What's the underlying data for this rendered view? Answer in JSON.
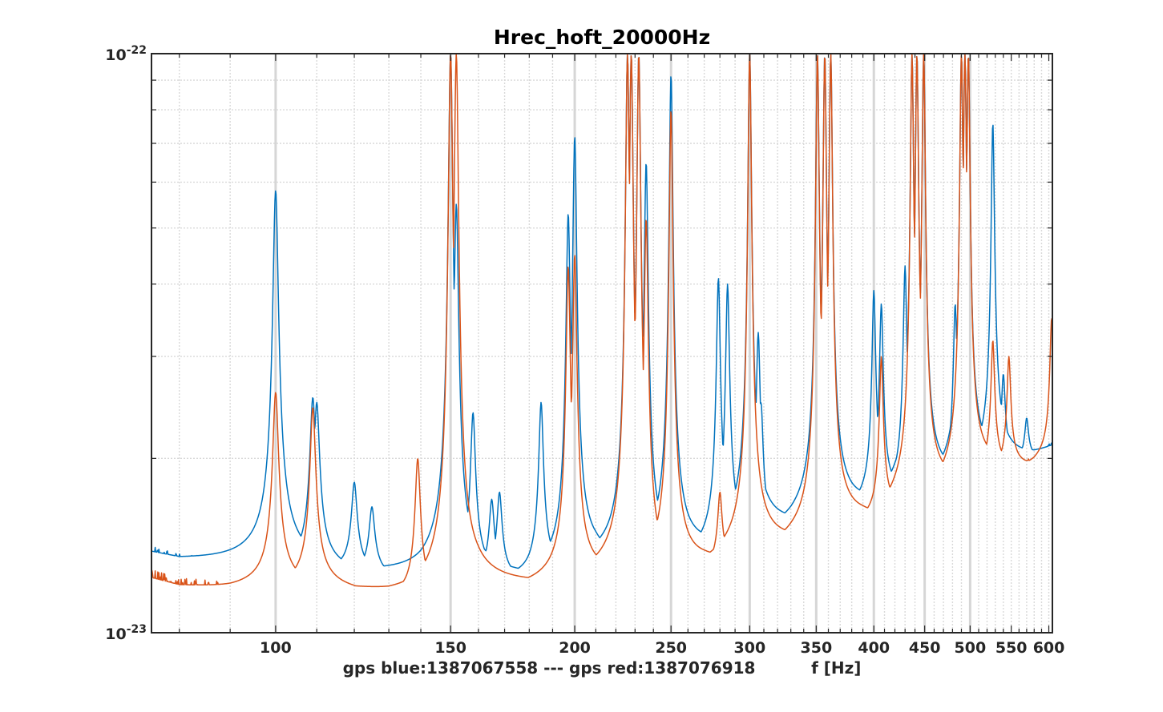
{
  "chart_data": {
    "type": "line",
    "title": "Hrec_hoft_20000Hz",
    "xlabel": "gps blue:1387067558 --- gps red:1387076918          f [Hz]",
    "ylabel": "",
    "x_scale": "log",
    "y_scale": "log",
    "xlim": [
      75,
      605
    ],
    "ylim": [
      1e-23,
      1e-22
    ],
    "x_ticks": [
      100,
      150,
      200,
      250,
      300,
      350,
      400,
      450,
      500,
      550,
      600
    ],
    "y_tick_labels": [
      {
        "value": 1e-23,
        "base": "10",
        "exp": "-23"
      },
      {
        "value": 1e-22,
        "base": "10",
        "exp": "-22"
      }
    ],
    "grid": true,
    "legend": "none",
    "colors": {
      "blue": "#0072bd",
      "red": "#d95319",
      "axes": "#262626",
      "grid": "#d9d9d9",
      "marker": "#d6d6d6"
    },
    "reference_lines_hz": [
      100,
      150,
      200,
      250,
      300,
      350,
      400,
      450,
      500
    ],
    "series": [
      {
        "color": "#0072bd",
        "baseline": [
          [
            75,
            1.35e-23
          ],
          [
            80,
            1.31e-23
          ],
          [
            90,
            1.29e-23
          ],
          [
            100,
            1.27e-23
          ],
          [
            110,
            1.27e-23
          ],
          [
            120,
            1.25e-23
          ],
          [
            130,
            1.23e-23
          ],
          [
            140,
            1.21e-23
          ],
          [
            150,
            1.22e-23
          ],
          [
            160,
            1.24e-23
          ],
          [
            170,
            1.22e-23
          ],
          [
            180,
            1.22e-23
          ],
          [
            190,
            1.24e-23
          ],
          [
            200,
            1.25e-23
          ],
          [
            210,
            1.29e-23
          ],
          [
            220,
            1.29e-23
          ],
          [
            230,
            1.31e-23
          ],
          [
            240,
            1.32e-23
          ],
          [
            250,
            1.31e-23
          ],
          [
            260,
            1.32e-23
          ],
          [
            270,
            1.35e-23
          ],
          [
            280,
            1.38e-23
          ],
          [
            290,
            1.41e-23
          ],
          [
            300,
            1.43e-23
          ],
          [
            310,
            1.45e-23
          ],
          [
            320,
            1.47e-23
          ],
          [
            330,
            1.49e-23
          ],
          [
            340,
            1.52e-23
          ],
          [
            350,
            1.54e-23
          ],
          [
            360,
            1.56e-23
          ],
          [
            370,
            1.58e-23
          ],
          [
            380,
            1.59e-23
          ],
          [
            390,
            1.61e-23
          ],
          [
            400,
            1.62e-23
          ],
          [
            420,
            1.69e-23
          ],
          [
            440,
            1.72e-23
          ],
          [
            460,
            1.76e-23
          ],
          [
            480,
            1.8e-23
          ],
          [
            500,
            1.87e-23
          ],
          [
            520,
            1.9e-23
          ],
          [
            540,
            1.93e-23
          ],
          [
            560,
            1.95e-23
          ],
          [
            580,
            1.98e-23
          ],
          [
            605,
            2.05e-23
          ]
        ],
        "peaks": [
          [
            100,
            5.8e-23
          ],
          [
            109,
            2.55e-23
          ],
          [
            110,
            2.5e-23
          ],
          [
            120,
            1.82e-23
          ],
          [
            125,
            1.65e-23
          ],
          [
            150,
            1e-22
          ],
          [
            152,
            5.5e-23
          ],
          [
            158,
            2.4e-23
          ],
          [
            165,
            1.7e-23
          ],
          [
            168,
            1.75e-23
          ],
          [
            185,
            2.5e-23
          ],
          [
            197,
            5.3e-23
          ],
          [
            200,
            7.2e-23
          ],
          [
            226,
            1e-22
          ],
          [
            228,
            1e-22
          ],
          [
            232,
            1e-22
          ],
          [
            236,
            6.5e-23
          ],
          [
            250,
            9.2e-23
          ],
          [
            279,
            4.1e-23
          ],
          [
            285,
            4e-23
          ],
          [
            300,
            1e-22
          ],
          [
            306,
            3.3e-23
          ],
          [
            308,
            2.5e-23
          ],
          [
            351,
            1e-22
          ],
          [
            357,
            1e-22
          ],
          [
            362,
            1e-22
          ],
          [
            400,
            3.9e-23
          ],
          [
            407,
            3.7e-23
          ],
          [
            430,
            4.3e-23
          ],
          [
            437,
            1e-22
          ],
          [
            442,
            1e-22
          ],
          [
            449,
            1e-22
          ],
          [
            483,
            3.7e-23
          ],
          [
            490,
            1e-22
          ],
          [
            494,
            1e-22
          ],
          [
            498,
            1e-22
          ],
          [
            527,
            7.6e-23
          ],
          [
            540,
            2.8e-23
          ],
          [
            570,
            2.35e-23
          ]
        ]
      },
      {
        "color": "#d95319",
        "baseline": [
          [
            75,
            1.23e-23
          ],
          [
            80,
            1.19e-23
          ],
          [
            90,
            1.17e-23
          ],
          [
            100,
            1.17e-23
          ],
          [
            110,
            1.17e-23
          ],
          [
            120,
            1.16e-23
          ],
          [
            130,
            1.13e-23
          ],
          [
            140,
            1.12e-23
          ],
          [
            150,
            1.13e-23
          ],
          [
            160,
            1.16e-23
          ],
          [
            170,
            1.17e-23
          ],
          [
            180,
            1.18e-23
          ],
          [
            190,
            1.19e-23
          ],
          [
            200,
            1.2e-23
          ],
          [
            210,
            1.22e-23
          ],
          [
            220,
            1.23e-23
          ],
          [
            230,
            1.23e-23
          ],
          [
            240,
            1.24e-23
          ],
          [
            250,
            1.22e-23
          ],
          [
            260,
            1.24e-23
          ],
          [
            270,
            1.27e-23
          ],
          [
            280,
            1.29e-23
          ],
          [
            290,
            1.31e-23
          ],
          [
            300,
            1.33e-23
          ],
          [
            310,
            1.35e-23
          ],
          [
            320,
            1.37e-23
          ],
          [
            330,
            1.39e-23
          ],
          [
            340,
            1.41e-23
          ],
          [
            350,
            1.43e-23
          ],
          [
            360,
            1.46e-23
          ],
          [
            370,
            1.48e-23
          ],
          [
            380,
            1.5e-23
          ],
          [
            390,
            1.52e-23
          ],
          [
            400,
            1.53e-23
          ],
          [
            420,
            1.6e-23
          ],
          [
            440,
            1.66e-23
          ],
          [
            460,
            1.7e-23
          ],
          [
            480,
            1.75e-23
          ],
          [
            500,
            1.81e-23
          ],
          [
            520,
            1.85e-23
          ],
          [
            540,
            1.88e-23
          ],
          [
            560,
            1.9e-23
          ],
          [
            580,
            1.92e-23
          ],
          [
            605,
            1.98e-23
          ]
        ],
        "peaks": [
          [
            100,
            2.6e-23
          ],
          [
            109,
            2.45e-23
          ],
          [
            139,
            2e-23
          ],
          [
            150,
            1e-22
          ],
          [
            152,
            1e-22
          ],
          [
            197,
            4.3e-23
          ],
          [
            200,
            4.5e-23
          ],
          [
            226,
            1e-22
          ],
          [
            228,
            1e-22
          ],
          [
            232,
            1e-22
          ],
          [
            236,
            5.2e-23
          ],
          [
            250,
            8e-23
          ],
          [
            280,
            1.75e-23
          ],
          [
            300,
            1e-22
          ],
          [
            351,
            1e-22
          ],
          [
            357,
            1e-22
          ],
          [
            362,
            1e-22
          ],
          [
            407,
            3e-23
          ],
          [
            437,
            1e-22
          ],
          [
            442,
            1e-22
          ],
          [
            449,
            1e-22
          ],
          [
            490,
            1e-22
          ],
          [
            494,
            1e-22
          ],
          [
            498,
            1e-22
          ],
          [
            527,
            3.2e-23
          ],
          [
            547,
            3e-23
          ],
          [
            604,
            3.5e-23
          ]
        ]
      }
    ]
  }
}
